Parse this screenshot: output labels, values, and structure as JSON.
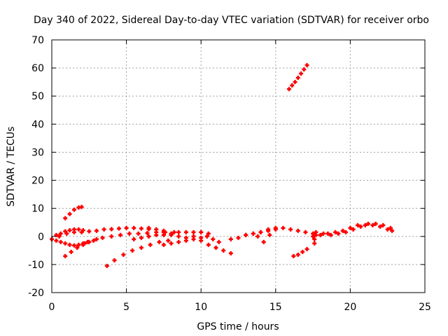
{
  "chart_data": {
    "type": "scatter",
    "title": "Day 340 of 2022, Sidereal Day-to-day VTEC variation (SDTVAR) for receiver orbo",
    "xlabel": "GPS time / hours",
    "ylabel": "SDTVAR / TECUs",
    "xlim": [
      0,
      25
    ],
    "ylim": [
      -20,
      70
    ],
    "xticks": [
      0,
      5,
      10,
      15,
      20,
      25
    ],
    "yticks": [
      -20,
      -10,
      0,
      10,
      20,
      30,
      40,
      50,
      60,
      70
    ],
    "grid": true,
    "legend": "none",
    "marker": "plus",
    "color": "#ff0000",
    "series": [
      {
        "x": [
          0.0,
          0.3,
          0.6,
          0.9,
          1.2,
          1.5,
          1.8,
          2.1,
          2.4
        ],
        "y": [
          -1.0,
          -1.5,
          -2.0,
          -2.5,
          -3.0,
          -3.2,
          -3.0,
          -2.5,
          -2.0
        ]
      },
      {
        "x": [
          0.0,
          0.5,
          1.0,
          1.5,
          2.0,
          2.5,
          3.0,
          3.5,
          4.0,
          4.5,
          5.0,
          5.5,
          6.0,
          6.5,
          7.0,
          7.5
        ],
        "y": [
          -1.0,
          0.0,
          1.0,
          1.5,
          1.5,
          1.8,
          2.0,
          2.5,
          2.6,
          2.8,
          3.0,
          3.0,
          2.8,
          2.6,
          2.5,
          2.0
        ]
      },
      {
        "x": [
          0.3,
          0.6,
          0.9,
          1.2,
          1.5,
          1.8,
          2.1
        ],
        "y": [
          0.5,
          1.0,
          1.8,
          2.2,
          2.5,
          2.5,
          2.2
        ]
      },
      {
        "x": [
          0.9,
          1.2,
          1.5,
          1.8,
          2.0
        ],
        "y": [
          6.5,
          8.0,
          9.5,
          10.3,
          10.5
        ]
      },
      {
        "x": [
          0.9,
          1.3,
          1.7,
          2.1,
          2.5,
          3.0
        ],
        "y": [
          -7.0,
          -5.5,
          -4.0,
          -3.0,
          -2.0,
          -1.0
        ]
      },
      {
        "x": [
          2.2,
          2.8,
          3.4,
          4.0,
          4.6,
          5.2,
          5.8,
          6.4,
          7.0,
          7.6,
          8.2
        ],
        "y": [
          -2.5,
          -1.5,
          -0.5,
          0.0,
          0.5,
          1.0,
          1.0,
          1.2,
          1.5,
          1.5,
          1.5
        ]
      },
      {
        "x": [
          3.7,
          4.2,
          4.8,
          5.4,
          6.0,
          6.6,
          7.2,
          7.8
        ],
        "y": [
          -10.5,
          -8.5,
          -6.5,
          -5.0,
          -4.0,
          -3.0,
          -2.0,
          -1.5
        ]
      },
      {
        "x": [
          5.5,
          6.0,
          6.5,
          7.0,
          7.5,
          8.0,
          8.5,
          9.0,
          9.5,
          10.0,
          10.5
        ],
        "y": [
          -1.0,
          -0.5,
          0.0,
          0.5,
          0.5,
          1.0,
          1.5,
          1.5,
          1.5,
          1.5,
          1.0
        ]
      },
      {
        "x": [
          6.5,
          7.0,
          7.5,
          8.0,
          8.5,
          9.0
        ],
        "y": [
          3.0,
          2.5,
          1.5,
          0.5,
          0.0,
          -0.5
        ]
      },
      {
        "x": [
          7.5,
          8.0,
          8.5,
          9.0,
          9.5,
          10.0
        ],
        "y": [
          -3.0,
          -2.5,
          -2.0,
          -1.5,
          -1.0,
          -0.5
        ]
      },
      {
        "x": [
          9.5,
          10.0,
          10.5,
          11.0,
          11.5,
          12.0
        ],
        "y": [
          0.0,
          -1.5,
          -3.0,
          -4.0,
          -5.0,
          -6.0
        ]
      },
      {
        "x": [
          10.0,
          10.4,
          10.8,
          11.2
        ],
        "y": [
          1.5,
          0.0,
          -1.0,
          -2.0
        ]
      },
      {
        "x": [
          12.0,
          12.5,
          13.0,
          13.5,
          14.0,
          14.5,
          15.0
        ],
        "y": [
          -1.0,
          -0.5,
          0.5,
          1.0,
          1.5,
          2.0,
          2.5
        ]
      },
      {
        "x": [
          13.0,
          13.5,
          14.0,
          14.5,
          15.0,
          15.5,
          16.0,
          16.5,
          17.0,
          17.5
        ],
        "y": [
          0.5,
          1.0,
          1.5,
          2.5,
          3.0,
          3.0,
          2.5,
          2.0,
          1.5,
          1.0
        ]
      },
      {
        "x": [
          13.8,
          14.2,
          14.6
        ],
        "y": [
          0.0,
          -2.0,
          0.5
        ]
      },
      {
        "x": [
          15.9,
          16.1,
          16.3,
          16.5,
          16.7,
          16.9,
          17.1
        ],
        "y": [
          52.5,
          53.8,
          55.0,
          56.5,
          58.0,
          59.5,
          61.0
        ]
      },
      {
        "x": [
          16.2,
          16.5,
          16.8,
          17.1
        ],
        "y": [
          -7.0,
          -6.5,
          -5.5,
          -4.5
        ]
      },
      {
        "x": [
          17.5,
          18.0,
          18.5,
          19.0,
          19.5,
          20.0,
          20.5,
          21.0,
          21.5,
          22.0,
          22.5,
          22.8
        ],
        "y": [
          0.0,
          0.5,
          1.0,
          1.5,
          2.0,
          3.0,
          4.0,
          4.0,
          4.0,
          3.5,
          2.5,
          2.0
        ]
      },
      {
        "x": [
          17.7,
          18.2,
          18.7,
          19.2,
          19.7,
          20.2,
          20.7,
          21.2,
          21.7,
          22.2,
          22.7
        ],
        "y": [
          1.5,
          1.0,
          0.5,
          1.0,
          1.5,
          2.5,
          3.5,
          4.5,
          4.5,
          4.0,
          3.0
        ]
      },
      {
        "x": [
          17.6,
          17.6,
          17.7
        ],
        "y": [
          -2.5,
          -1.0,
          0.5
        ]
      }
    ]
  }
}
